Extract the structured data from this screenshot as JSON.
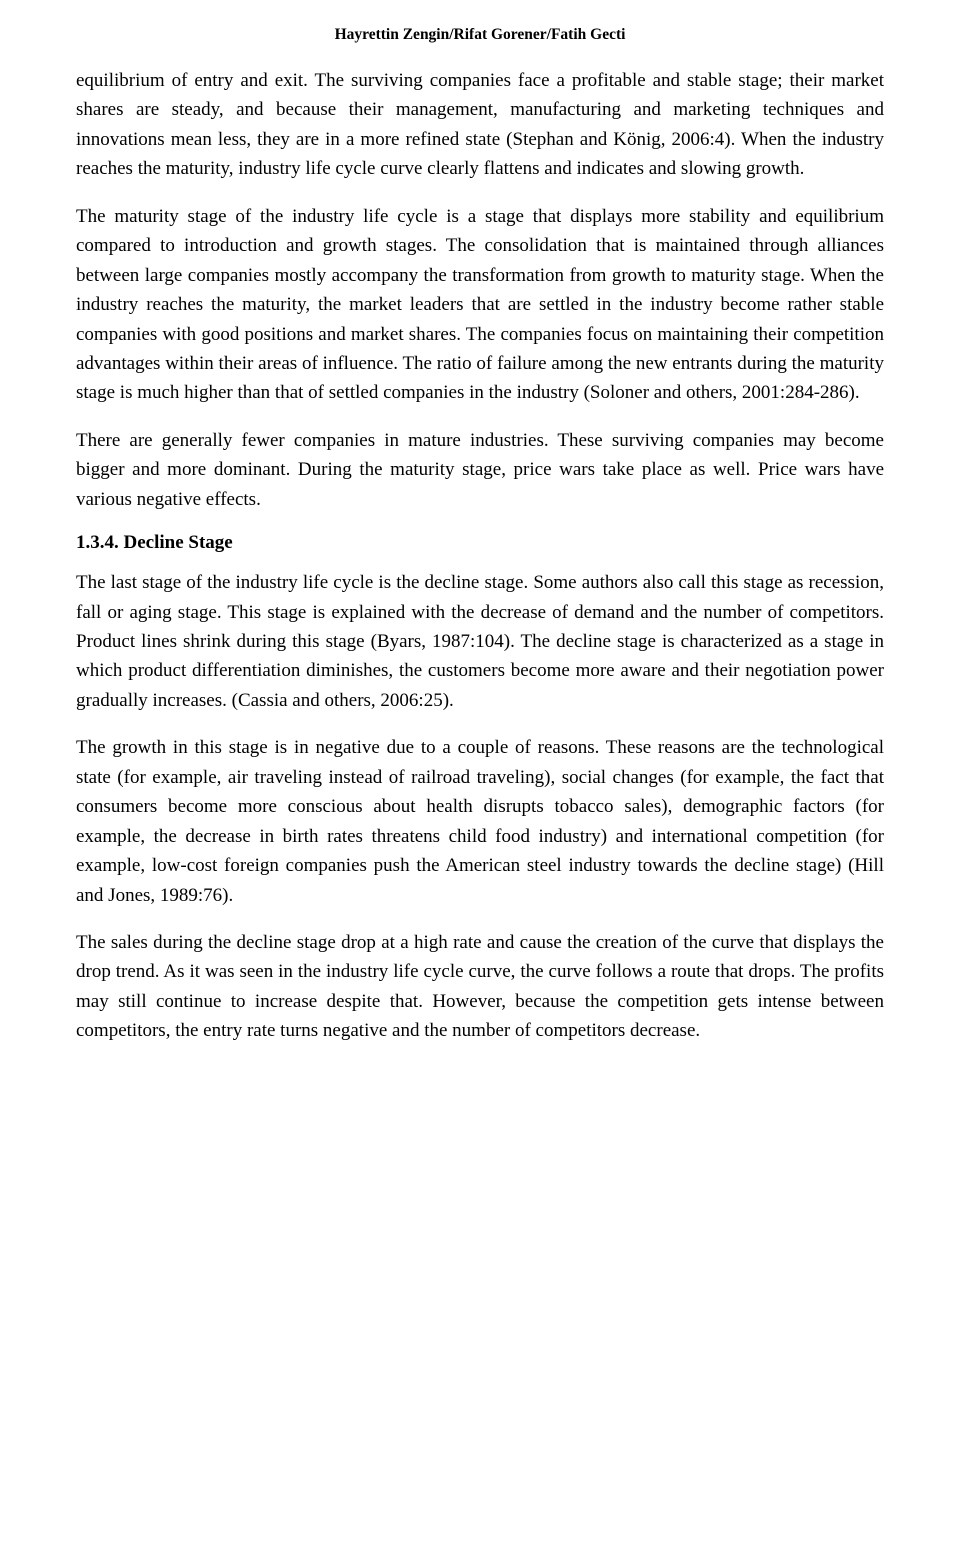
{
  "header": {
    "authors": "Hayrettin Zengin/Rifat Gorener/Fatih Gecti"
  },
  "paragraphs": {
    "p1": "equilibrium of entry and exit. The surviving companies face a profitable and stable stage; their market shares are steady, and because their management, manufacturing and marketing techniques and innovations mean less, they are in a more refined state (Stephan and König, 2006:4). When the industry reaches the maturity, industry life cycle curve clearly flattens and indicates and slowing growth.",
    "p2": "The maturity stage of the industry life cycle is a stage that displays more stability and equilibrium compared to introduction and growth stages. The consolidation that is maintained through alliances between large companies mostly accompany the transformation from growth to maturity stage. When the industry reaches the maturity, the market leaders that are settled in the industry become rather stable companies with good positions and market shares. The companies focus on maintaining their competition advantages within their areas of influence. The ratio of failure among the new entrants during the maturity stage is much higher than that of settled companies in the industry (Soloner and others, 2001:284-286).",
    "p3": "There are generally fewer companies in mature industries. These surviving companies may become bigger and more dominant. During the maturity stage, price wars take place as well. Price wars have various negative effects.",
    "heading": "1.3.4. Decline Stage",
    "p4": "The last stage of the industry life cycle is the decline stage. Some authors also call this stage as recession, fall or aging stage. This stage is explained with the decrease of demand and the number of competitors. Product lines shrink during this stage (Byars, 1987:104). The decline stage is characterized as a stage in which product differentiation diminishes, the customers become more aware and their negotiation power gradually increases. (Cassia and others, 2006:25).",
    "p5": "The growth in this stage is in negative due to a couple of reasons. These reasons are the technological state (for example, air traveling instead of railroad traveling), social changes (for example, the fact that consumers become more conscious about health disrupts tobacco sales), demographic factors (for example, the decrease in birth rates threatens child food industry) and international competition (for example, low-cost foreign companies push the American steel industry towards the decline stage) (Hill and Jones, 1989:76).",
    "p6": "The sales during the decline stage drop at a high rate and cause the creation of the curve that displays the drop trend. As it was seen in the industry life cycle curve, the curve follows a route that drops. The profits may still continue to increase despite that. However, because the competition gets intense between competitors, the entry rate turns negative and the number of competitors decrease."
  }
}
